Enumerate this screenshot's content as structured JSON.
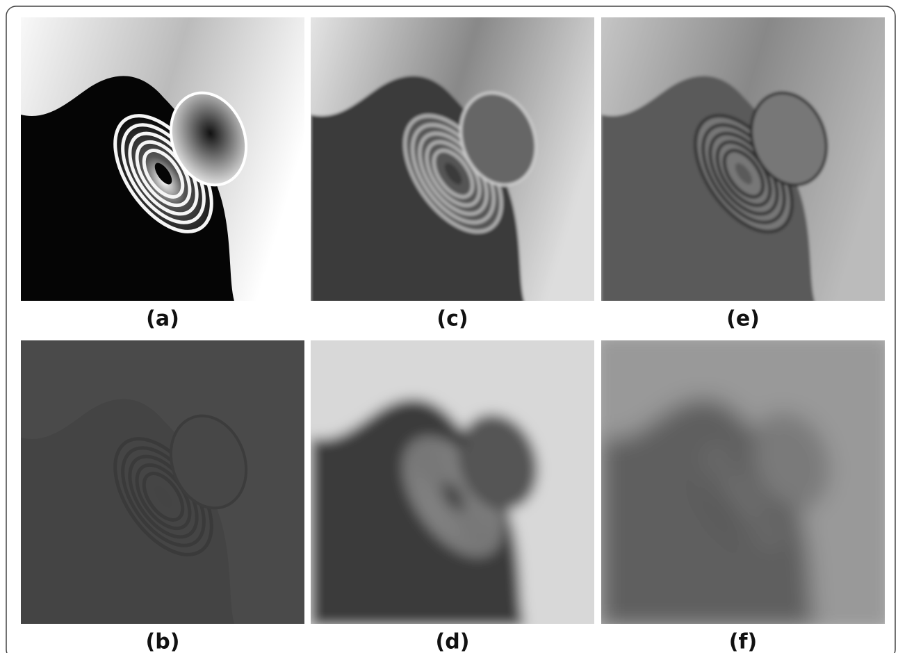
{
  "panels": [
    {
      "label": "(a)"
    },
    {
      "label": "(c)"
    },
    {
      "label": "(e)"
    },
    {
      "label": "(b)"
    },
    {
      "label": "(d)"
    },
    {
      "label": "(f)"
    }
  ]
}
